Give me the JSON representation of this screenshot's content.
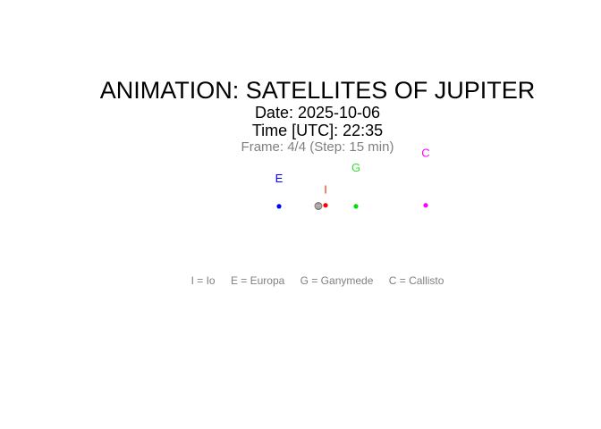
{
  "chart_data": {
    "type": "scatter",
    "title": "ANIMATION: SATELLITES OF JUPITER",
    "subtitle_date": "Date: 2025-10-06",
    "subtitle_time": "Time [UTC]: 22:35",
    "frame_info": "Frame: 4/4 (Step: 15 min)",
    "grid": false,
    "axes_visible": false,
    "planet": {
      "name": "Jupiter",
      "x": 0,
      "y": 0,
      "icon": "jupiter-disc-icon"
    },
    "points": [
      {
        "label": "E",
        "x": -11,
        "y": 0.1,
        "color": "#0000ff",
        "label_color": "#0000ff"
      },
      {
        "label": "I",
        "x": 2,
        "y": -0.2,
        "color": "#ff0000",
        "label_color": "#e03a00"
      },
      {
        "label": "G",
        "x": 10.5,
        "y": 0.1,
        "color": "#00e000",
        "label_color": "#33dd33"
      },
      {
        "label": "C",
        "x": 30,
        "y": -0.2,
        "color": "#ff00ff",
        "label_color": "#ff00ff"
      }
    ],
    "legend": [
      "I = Io",
      "E = Europa",
      "G = Ganymede",
      "C = Callisto"
    ],
    "legend_placement": "bottom"
  }
}
